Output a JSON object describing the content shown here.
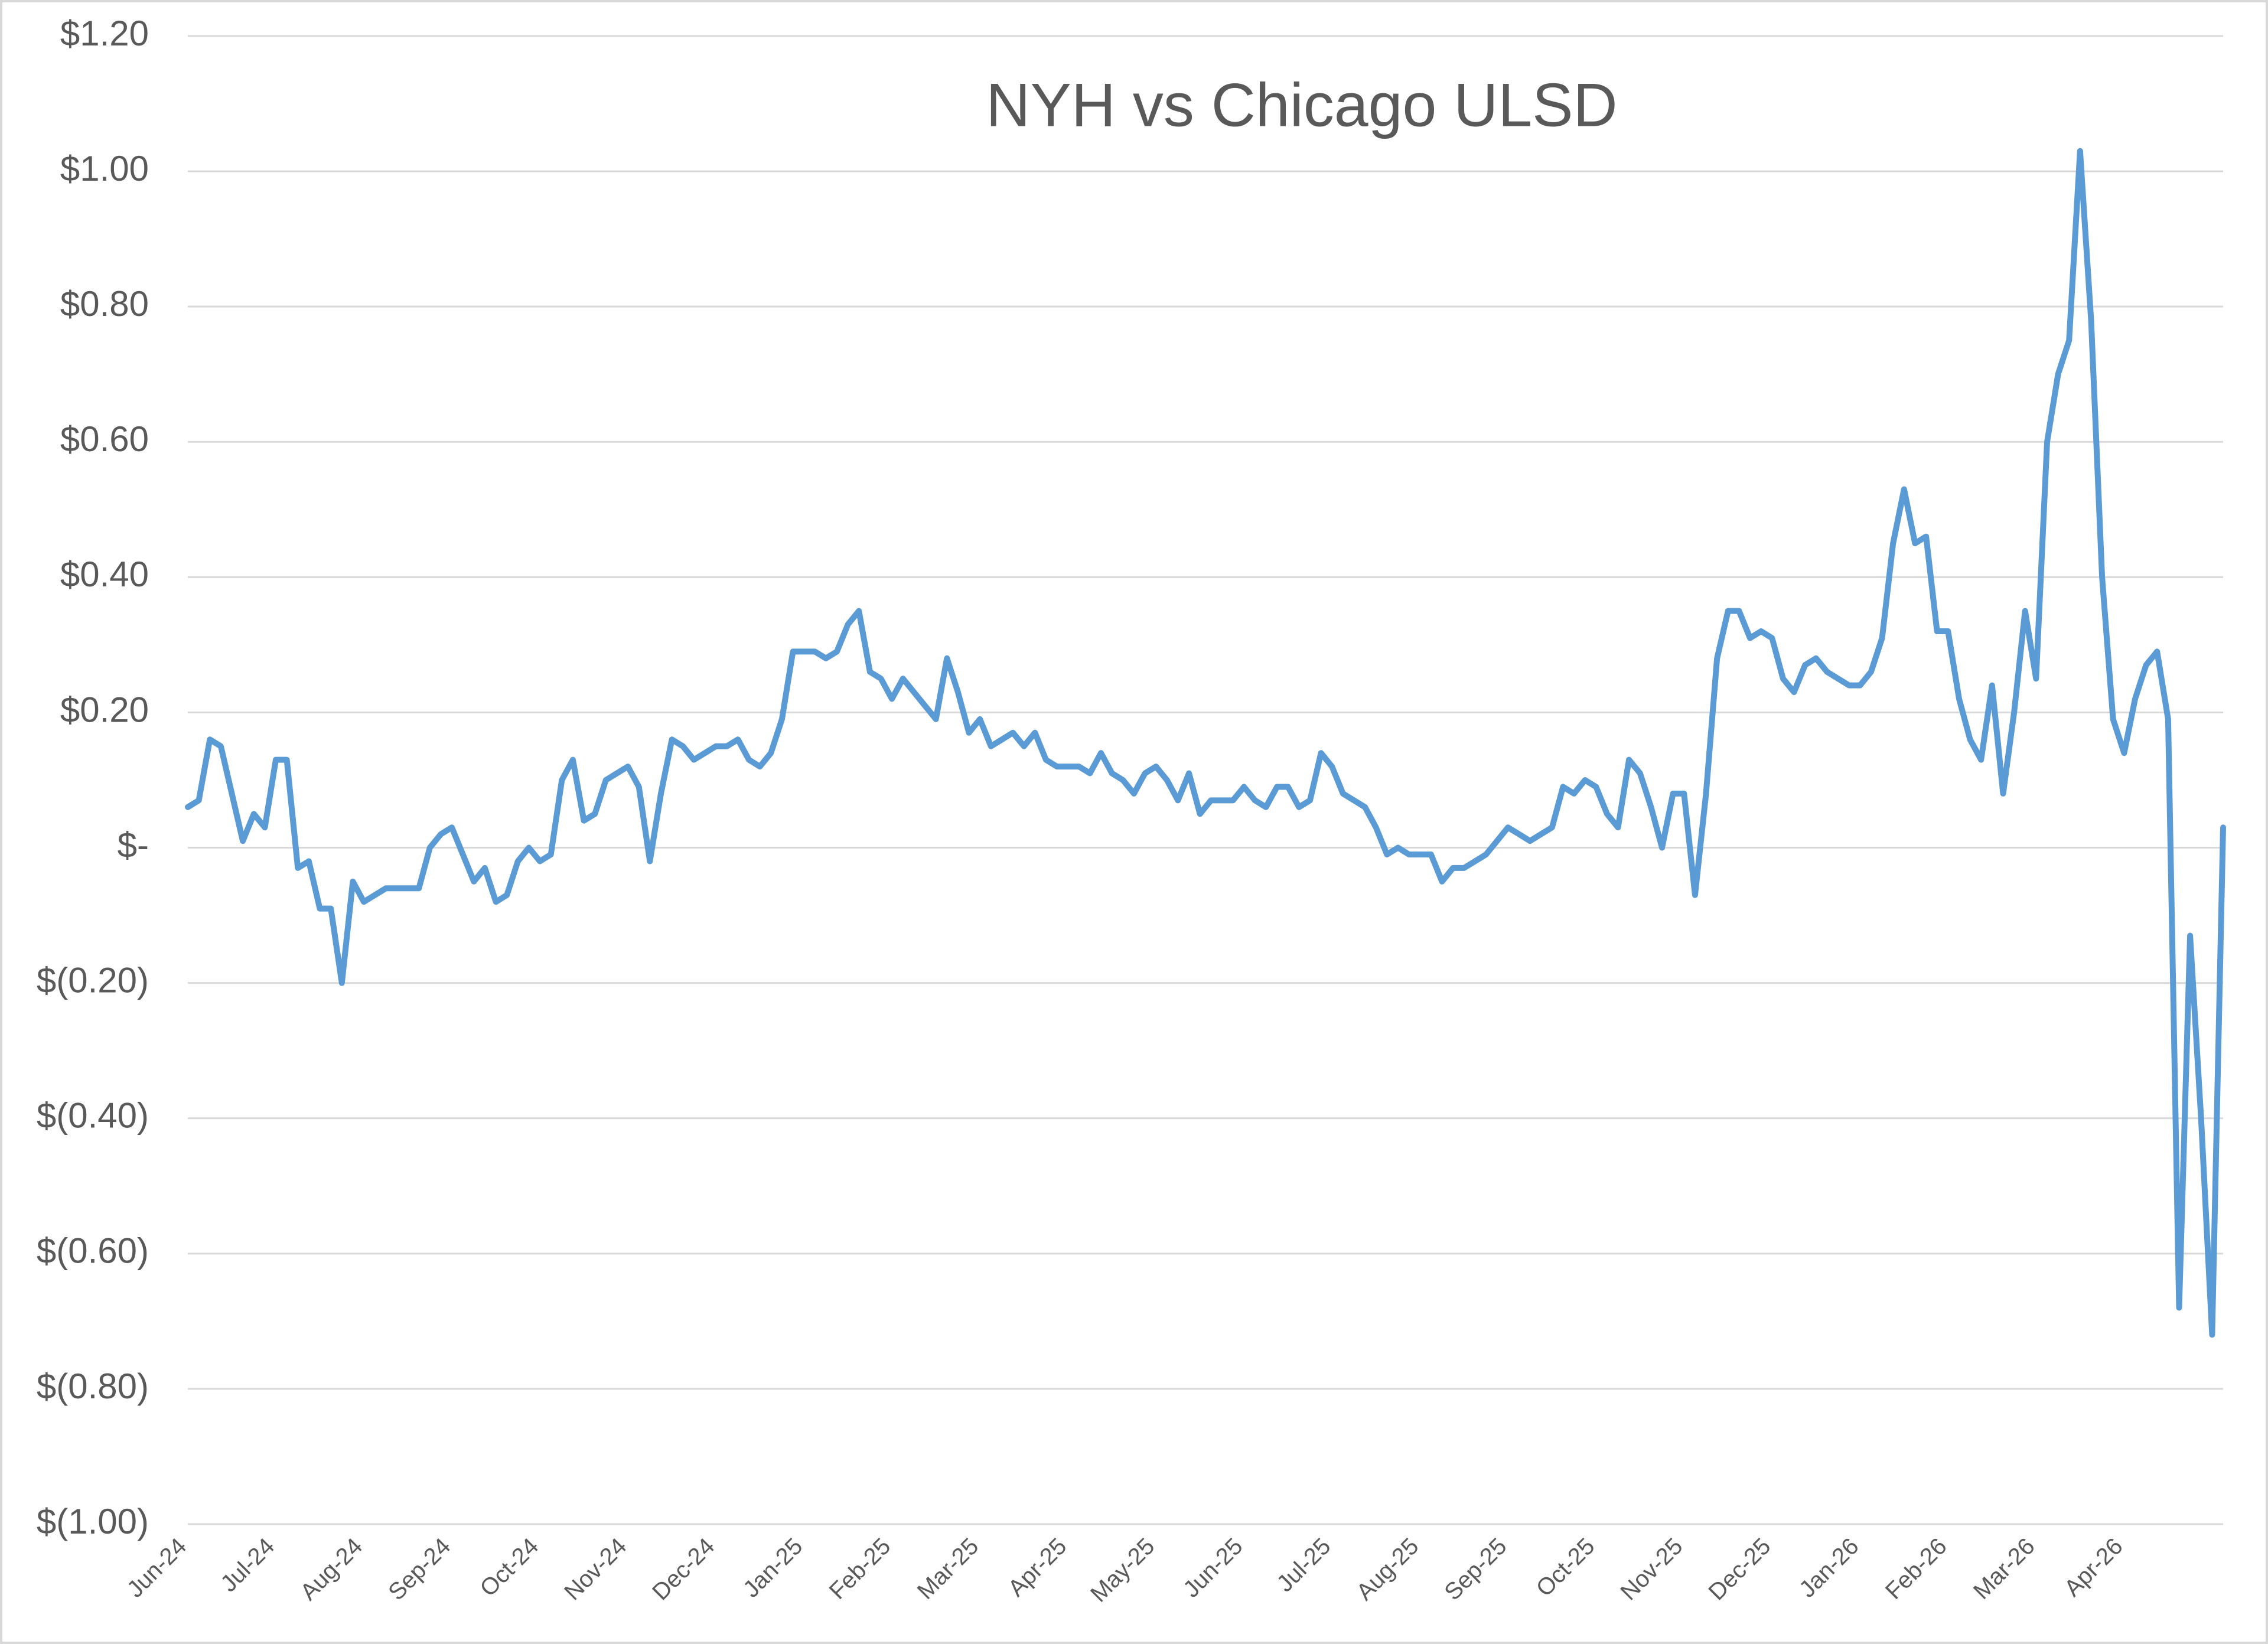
{
  "chart_data": {
    "type": "line",
    "title": "NYH vs Chicago ULSD",
    "categories": [
      "Jun-24",
      null,
      null,
      null,
      null,
      null,
      null,
      null,
      "Jul-24",
      null,
      null,
      null,
      null,
      null,
      null,
      null,
      "Aug-24",
      null,
      null,
      null,
      null,
      null,
      null,
      null,
      "Sep-24",
      null,
      null,
      null,
      null,
      null,
      null,
      null,
      "Oct-24",
      null,
      null,
      null,
      null,
      null,
      null,
      null,
      "Nov-24",
      null,
      null,
      null,
      null,
      null,
      null,
      null,
      "Dec-24",
      null,
      null,
      null,
      null,
      null,
      null,
      null,
      "Jan-25",
      null,
      null,
      null,
      null,
      null,
      null,
      null,
      "Feb-25",
      null,
      null,
      null,
      null,
      null,
      null,
      null,
      "Mar-25",
      null,
      null,
      null,
      null,
      null,
      null,
      null,
      "Apr-25",
      null,
      null,
      null,
      null,
      null,
      null,
      null,
      "May-25",
      null,
      null,
      null,
      null,
      null,
      null,
      null,
      "Jun-25",
      null,
      null,
      null,
      null,
      null,
      null,
      null,
      "Jul-25",
      null,
      null,
      null,
      null,
      null,
      null,
      null,
      "Aug-25",
      null,
      null,
      null,
      null,
      null,
      null,
      null,
      "Sep-25",
      null,
      null,
      null,
      null,
      null,
      null,
      null,
      "Oct-25",
      null,
      null,
      null,
      null,
      null,
      null,
      null,
      "Nov-25",
      null,
      null,
      null,
      null,
      null,
      null,
      null,
      "Dec-25",
      null,
      null,
      null,
      null,
      null,
      null,
      null,
      "Jan-26",
      null,
      null,
      null,
      null,
      null,
      null,
      null,
      "Feb-26",
      null,
      null,
      null,
      null,
      null,
      null,
      null,
      "Mar-26",
      null,
      null,
      null,
      null,
      null,
      null,
      null,
      "Apr-26",
      null,
      null,
      null,
      null,
      null,
      null,
      null,
      null,
      null
    ],
    "values": [
      0.06,
      0.07,
      0.16,
      0.15,
      0.08,
      0.01,
      0.05,
      0.03,
      0.13,
      0.13,
      -0.03,
      -0.02,
      -0.09,
      -0.09,
      -0.2,
      -0.05,
      -0.08,
      -0.07,
      -0.06,
      -0.06,
      -0.06,
      -0.06,
      0.0,
      0.02,
      0.03,
      -0.01,
      -0.05,
      -0.03,
      -0.08,
      -0.07,
      -0.02,
      0.0,
      -0.02,
      -0.01,
      0.1,
      0.13,
      0.04,
      0.05,
      0.1,
      0.11,
      0.12,
      0.09,
      -0.02,
      0.08,
      0.16,
      0.15,
      0.13,
      0.14,
      0.15,
      0.15,
      0.16,
      0.13,
      0.12,
      0.14,
      0.19,
      0.29,
      0.29,
      0.29,
      0.28,
      0.29,
      0.33,
      0.35,
      0.26,
      0.25,
      0.22,
      0.25,
      0.23,
      0.21,
      0.19,
      0.28,
      0.23,
      0.17,
      0.19,
      0.15,
      0.16,
      0.17,
      0.15,
      0.17,
      0.13,
      0.12,
      0.12,
      0.12,
      0.11,
      0.14,
      0.11,
      0.1,
      0.08,
      0.11,
      0.12,
      0.1,
      0.07,
      0.11,
      0.05,
      0.07,
      0.07,
      0.07,
      0.09,
      0.07,
      0.06,
      0.09,
      0.09,
      0.06,
      0.07,
      0.14,
      0.12,
      0.08,
      0.07,
      0.06,
      0.03,
      -0.01,
      0.0,
      -0.01,
      -0.01,
      -0.01,
      -0.05,
      -0.03,
      -0.03,
      -0.02,
      -0.01,
      0.01,
      0.03,
      0.02,
      0.01,
      0.02,
      0.03,
      0.09,
      0.08,
      0.1,
      0.09,
      0.05,
      0.03,
      0.13,
      0.11,
      0.06,
      0.0,
      0.08,
      0.08,
      -0.07,
      0.08,
      0.28,
      0.35,
      0.35,
      0.31,
      0.32,
      0.31,
      0.25,
      0.23,
      0.27,
      0.28,
      0.26,
      0.25,
      0.24,
      0.24,
      0.26,
      0.31,
      0.45,
      0.53,
      0.45,
      0.46,
      0.32,
      0.32,
      0.22,
      0.16,
      0.13,
      0.24,
      0.08,
      0.2,
      0.35,
      0.25,
      0.6,
      0.7,
      0.75,
      1.03,
      0.78,
      0.4,
      0.19,
      0.14,
      0.22,
      0.27,
      0.29,
      0.19,
      -0.68,
      -0.13,
      -0.4,
      -0.72,
      0.03
    ],
    "color": "#5b9bd5",
    "ylim": [
      -1,
      1.2
    ],
    "yticks": [
      {
        "value": -1,
        "label": "$(1.00)"
      },
      {
        "value": -0.8,
        "label": "$(0.80)"
      },
      {
        "value": -0.6,
        "label": "$(0.60)"
      },
      {
        "value": -0.4,
        "label": "$(0.40)"
      },
      {
        "value": -0.2,
        "label": "$(0.20)"
      },
      {
        "value": 0,
        "label": "$-"
      },
      {
        "value": 0.2,
        "label": "$0.20"
      },
      {
        "value": 0.4,
        "label": "$0.40"
      },
      {
        "value": 0.6,
        "label": "$0.60"
      },
      {
        "value": 0.8,
        "label": "$0.80"
      },
      {
        "value": 1,
        "label": "$1.00"
      },
      {
        "value": 1.2,
        "label": "$1.20"
      }
    ],
    "grid": true
  }
}
